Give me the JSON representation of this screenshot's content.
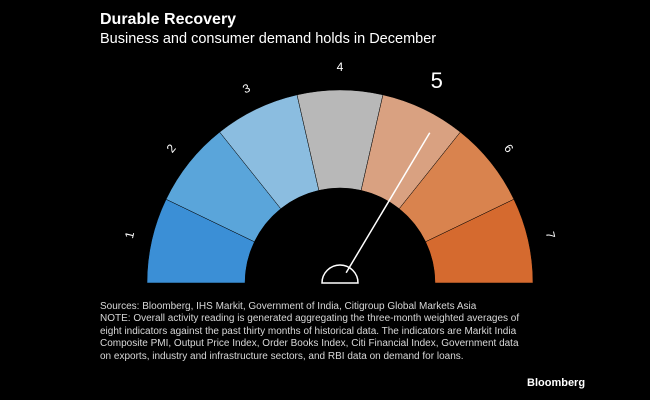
{
  "header": {
    "title": "Durable Recovery",
    "subtitle": "Business and consumer demand holds in December"
  },
  "chart_data": {
    "type": "gauge",
    "scale": [
      "1",
      "2",
      "3",
      "4",
      "5",
      "6",
      "7"
    ],
    "highlighted_label": "5",
    "value": 5.2,
    "range": [
      1,
      7
    ],
    "segment_colors": [
      "#3b8fd6",
      "#5aa5da",
      "#8bbde0",
      "#b8b8b8",
      "#d9a181",
      "#d9834e",
      "#d56a2f"
    ]
  },
  "footer": {
    "sources": "Sources: Bloomberg, IHS Markit, Government of India, Citigroup Global Markets Asia",
    "note": "NOTE: Overall activity reading is generated aggregating the three-month weighted averages of eight indicators against the past thirty months of historical data. The indicators are Markit India Composite PMI, Output Price Index, Order Books Index, Citi Financial Index, Government data on exports, industry and infrastructure sectors, and RBI data on demand for loans.",
    "brand": "Bloomberg"
  }
}
